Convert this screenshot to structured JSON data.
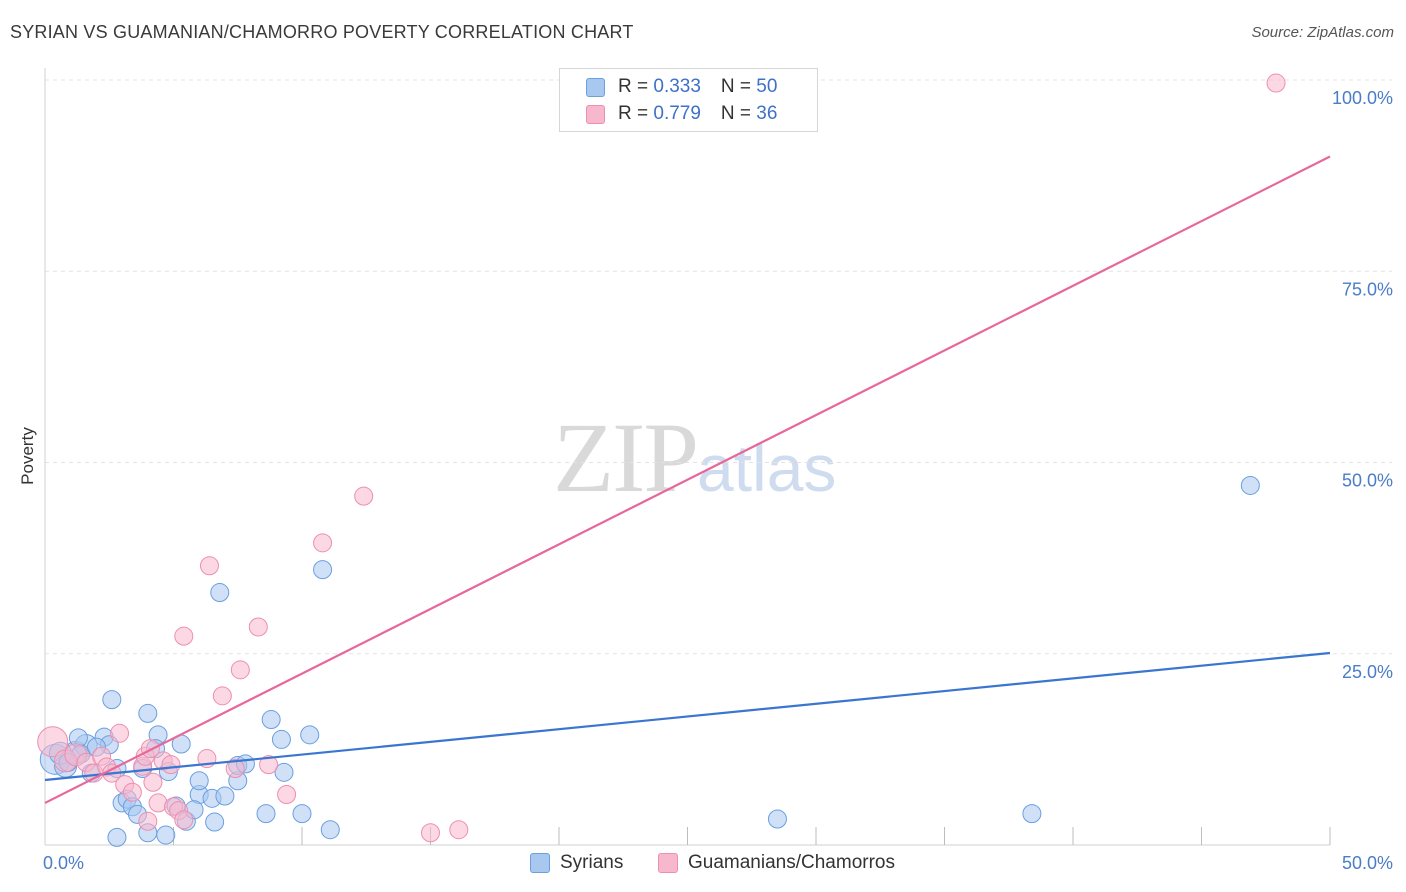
{
  "header": {
    "title": "SYRIAN VS GUAMANIAN/CHAMORRO POVERTY CORRELATION CHART",
    "source": "Source: ZipAtlas.com"
  },
  "watermark": {
    "zip": "ZIP",
    "atlas": "atlas"
  },
  "legend": {
    "series1": {
      "r_label": "R = ",
      "r_value": "0.333",
      "n_label": "N = ",
      "n_value": "50"
    },
    "series2": {
      "r_label": "R = ",
      "r_value": "0.779",
      "n_label": "N = ",
      "n_value": "36"
    }
  },
  "colors": {
    "blue_fill": "#a9c8f0",
    "blue_stroke": "#6a9fe0",
    "blue_line": "#3a76d0",
    "pink_fill": "#f7b8cd",
    "pink_stroke": "#ec8fb0",
    "pink_line": "#e8679a",
    "grid": "#e3e3e3"
  },
  "chart_data": {
    "type": "scatter",
    "title": "SYRIAN VS GUAMANIAN/CHAMORRO POVERTY CORRELATION CHART",
    "xlabel": "",
    "ylabel": "Poverty",
    "xlim": [
      0,
      50
    ],
    "ylim": [
      0,
      100
    ],
    "x_tick_labels": [
      {
        "value": 0,
        "label": "0.0%"
      },
      {
        "value": 50,
        "label": "50.0%"
      }
    ],
    "y_tick_labels": [
      {
        "value": 25,
        "label": "25.0%"
      },
      {
        "value": 50,
        "label": "50.0%"
      },
      {
        "value": 75,
        "label": "75.0%"
      },
      {
        "value": 100,
        "label": "100.0%"
      }
    ],
    "x_minor_ticks": [
      5,
      10,
      15,
      20,
      25,
      30,
      35,
      40,
      45,
      50
    ],
    "grid": true,
    "series": [
      {
        "name": "Syrians",
        "color": "blue",
        "r": 0.333,
        "n": 50,
        "trend": {
          "x": [
            0,
            50
          ],
          "y": [
            8.5,
            25.1
          ]
        },
        "points": [
          [
            0.4,
            11.2,
            2
          ],
          [
            0.8,
            10.3,
            1
          ],
          [
            1.2,
            12.1,
            1
          ],
          [
            0.6,
            12.0,
            1
          ],
          [
            1.6,
            13.0,
            1
          ],
          [
            1.8,
            9.4,
            0
          ],
          [
            2.3,
            14.1,
            0
          ],
          [
            2.5,
            13.1,
            0
          ],
          [
            1.3,
            14.0,
            0
          ],
          [
            2.8,
            10.0,
            0
          ],
          [
            2.6,
            19.0,
            0
          ],
          [
            3.0,
            5.5,
            0
          ],
          [
            3.2,
            6.0,
            0
          ],
          [
            3.4,
            5.0,
            0
          ],
          [
            3.6,
            4.0,
            0
          ],
          [
            2.8,
            1.0,
            0
          ],
          [
            3.8,
            10.0,
            0
          ],
          [
            4.0,
            17.2,
            0
          ],
          [
            4.4,
            14.4,
            0
          ],
          [
            4.3,
            12.6,
            0
          ],
          [
            4.8,
            9.6,
            0
          ],
          [
            5.1,
            5.1,
            0
          ],
          [
            5.3,
            13.2,
            0
          ],
          [
            5.5,
            3.1,
            0
          ],
          [
            4.0,
            1.6,
            0
          ],
          [
            4.7,
            1.3,
            0
          ],
          [
            6.0,
            6.6,
            0
          ],
          [
            6.0,
            8.4,
            0
          ],
          [
            5.8,
            4.6,
            0
          ],
          [
            6.5,
            6.1,
            0
          ],
          [
            6.6,
            3.0,
            0
          ],
          [
            7.0,
            6.4,
            0
          ],
          [
            6.8,
            33.0,
            0
          ],
          [
            7.5,
            8.4,
            0
          ],
          [
            7.5,
            10.4,
            0
          ],
          [
            7.8,
            10.6,
            0
          ],
          [
            8.6,
            4.1,
            0
          ],
          [
            8.8,
            16.4,
            0
          ],
          [
            9.2,
            13.8,
            0
          ],
          [
            9.3,
            9.5,
            0
          ],
          [
            10.3,
            14.4,
            0
          ],
          [
            10.0,
            4.1,
            0
          ],
          [
            10.8,
            36.0,
            0
          ],
          [
            11.1,
            2.0,
            0
          ],
          [
            28.5,
            3.4,
            0
          ],
          [
            38.4,
            4.1,
            0
          ],
          [
            46.9,
            47.0,
            0
          ],
          [
            1.4,
            11.9,
            0
          ],
          [
            2.0,
            12.8,
            0
          ],
          [
            0.9,
            10.8,
            0
          ]
        ]
      },
      {
        "name": "Guamanians/Chamorros",
        "color": "pink",
        "r": 0.779,
        "n": 36,
        "trend": {
          "x": [
            0,
            50
          ],
          "y": [
            5.5,
            90.0
          ]
        },
        "points": [
          [
            0.3,
            13.5,
            2
          ],
          [
            0.8,
            11.0,
            1
          ],
          [
            1.2,
            11.8,
            1
          ],
          [
            1.6,
            10.8,
            0
          ],
          [
            2.2,
            11.6,
            0
          ],
          [
            1.9,
            9.4,
            0
          ],
          [
            2.4,
            10.2,
            0
          ],
          [
            2.6,
            9.4,
            0
          ],
          [
            2.9,
            14.6,
            0
          ],
          [
            3.1,
            7.9,
            0
          ],
          [
            3.4,
            6.9,
            0
          ],
          [
            3.8,
            10.3,
            0
          ],
          [
            3.9,
            11.6,
            0
          ],
          [
            4.2,
            8.2,
            0
          ],
          [
            4.0,
            3.1,
            0
          ],
          [
            4.1,
            12.6,
            0
          ],
          [
            4.6,
            11.0,
            0
          ],
          [
            4.4,
            5.5,
            0
          ],
          [
            4.9,
            10.5,
            0
          ],
          [
            5.0,
            5.0,
            0
          ],
          [
            5.2,
            4.5,
            0
          ],
          [
            5.4,
            3.3,
            0
          ],
          [
            5.4,
            27.3,
            0
          ],
          [
            6.3,
            11.3,
            0
          ],
          [
            6.4,
            36.5,
            0
          ],
          [
            6.9,
            19.5,
            0
          ],
          [
            7.4,
            10.0,
            0
          ],
          [
            7.6,
            22.9,
            0
          ],
          [
            8.3,
            28.5,
            0
          ],
          [
            8.7,
            10.5,
            0
          ],
          [
            9.4,
            6.6,
            0
          ],
          [
            10.8,
            39.5,
            0
          ],
          [
            12.4,
            45.6,
            0
          ],
          [
            15.0,
            1.6,
            0
          ],
          [
            16.1,
            2.0,
            0
          ],
          [
            47.9,
            99.6,
            0
          ]
        ]
      }
    ],
    "legend_position": "top-center"
  }
}
